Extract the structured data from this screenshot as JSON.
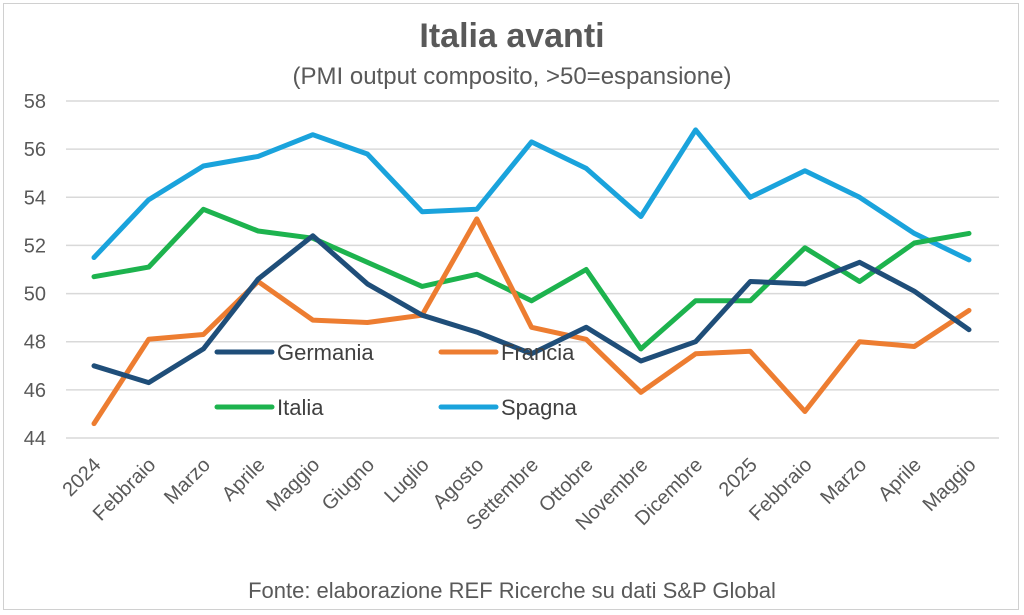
{
  "chart_data": {
    "type": "line",
    "title": "Italia avanti",
    "subtitle": "(PMI output composito, >50=espansione)",
    "source": "Fonte: elaborazione REF Ricerche su dati S&P Global",
    "categories": [
      "2024",
      "Febbraio",
      "Marzo",
      "Aprile",
      "Maggio",
      "Giugno",
      "Luglio",
      "Agosto",
      "Settembre",
      "Ottobre",
      "Novembre",
      "Dicembre",
      "2025",
      "Febbraio",
      "Marzo",
      "Aprile",
      "Maggio"
    ],
    "ylim": [
      44,
      58
    ],
    "yticks": [
      "44",
      "46",
      "48",
      "50",
      "52",
      "54",
      "56",
      "58"
    ],
    "grid": true,
    "legend_position": "inside-bottom-left",
    "series": [
      {
        "name": "Germania",
        "color": "#1f4e79",
        "values": [
          47.0,
          46.3,
          47.7,
          50.6,
          52.4,
          50.4,
          49.1,
          48.4,
          47.5,
          48.6,
          47.2,
          48.0,
          50.5,
          50.4,
          51.3,
          50.1,
          48.5
        ]
      },
      {
        "name": "Francia",
        "color": "#ed7d31",
        "values": [
          44.6,
          48.1,
          48.3,
          50.5,
          48.9,
          48.8,
          49.1,
          53.1,
          48.6,
          48.1,
          45.9,
          47.5,
          47.6,
          45.1,
          48.0,
          47.8,
          49.3
        ]
      },
      {
        "name": "Italia",
        "color": "#1db34e",
        "values": [
          50.7,
          51.1,
          53.5,
          52.6,
          52.3,
          51.3,
          50.3,
          50.8,
          49.7,
          51.0,
          47.7,
          49.7,
          49.7,
          51.9,
          50.5,
          52.1,
          52.5
        ]
      },
      {
        "name": "Spagna",
        "color": "#1aa3dc",
        "values": [
          51.5,
          53.9,
          55.3,
          55.7,
          56.6,
          55.8,
          53.4,
          53.5,
          56.3,
          55.2,
          53.2,
          56.8,
          54.0,
          55.1,
          54.0,
          52.5,
          51.4
        ]
      }
    ]
  }
}
